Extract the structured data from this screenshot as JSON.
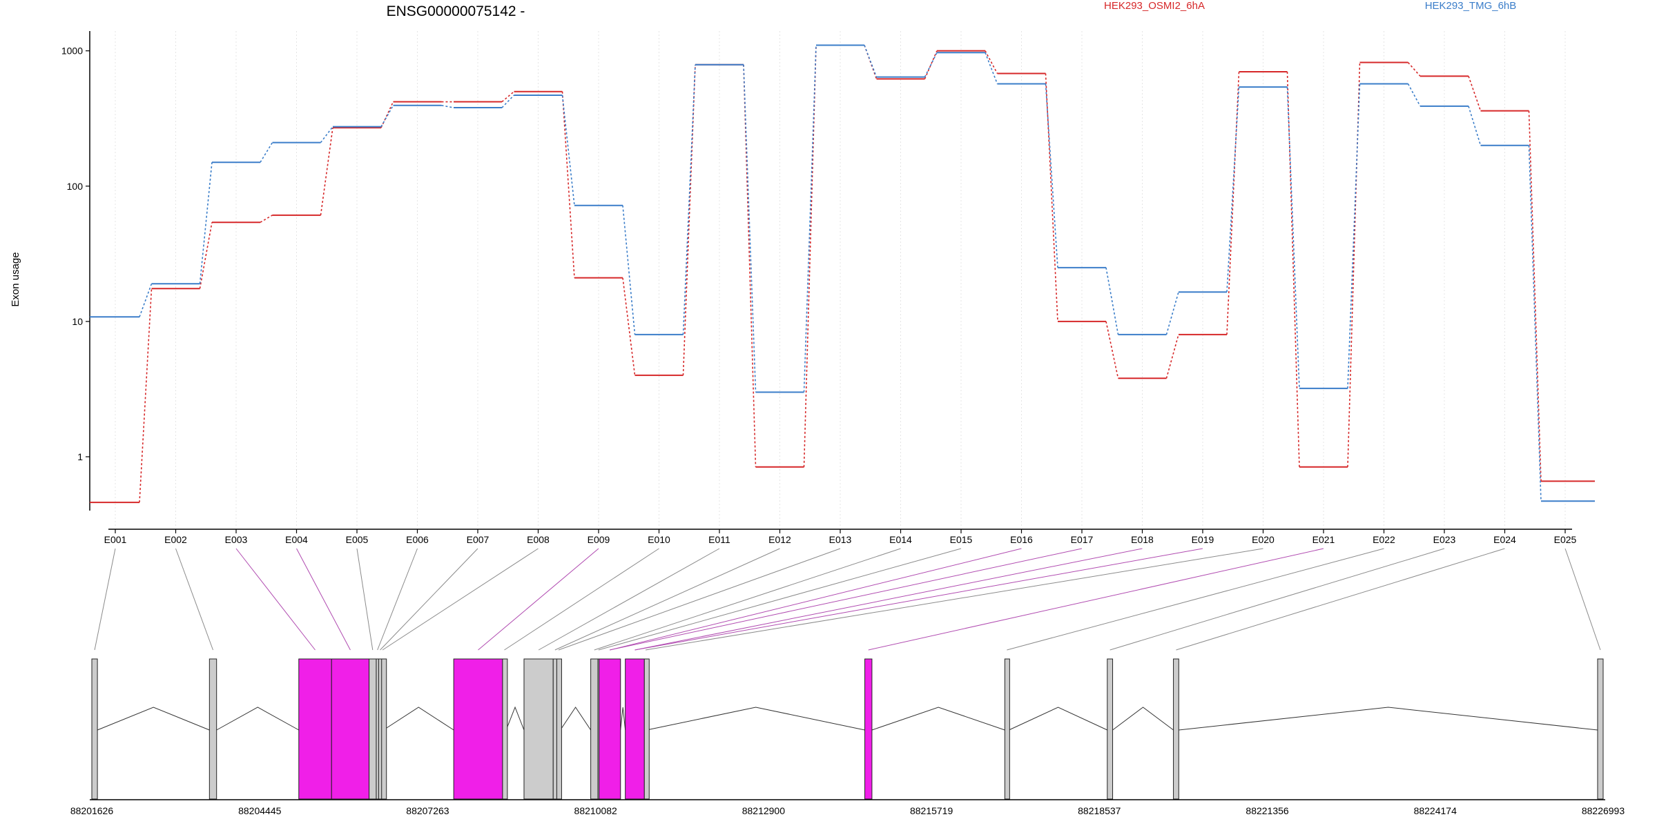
{
  "chart_data": {
    "type": "line",
    "title": "ENSG00000075142 -",
    "xlabel": "",
    "ylabel": "Exon usage",
    "yscale": "log",
    "ylim": [
      0.4,
      1400
    ],
    "yticks": [
      1,
      10,
      100,
      1000
    ],
    "ytick_labels": [
      "1",
      "10",
      "100",
      "1000"
    ],
    "grid": "vertical dotted at each exon",
    "legend": "top, horizontal",
    "categories": [
      "E001",
      "E002",
      "E003",
      "E004",
      "E005",
      "E006",
      "E007",
      "E008",
      "E009",
      "E010",
      "E011",
      "E012",
      "E013",
      "E014",
      "E015",
      "E016",
      "E017",
      "E018",
      "E019",
      "E020",
      "E021",
      "E022",
      "E023",
      "E024",
      "E025"
    ],
    "series": [
      {
        "name": "HEK293_OSMI2_6hA",
        "color": "#d62728",
        "values": [
          0.46,
          17.5,
          54,
          61,
          270,
          420,
          420,
          500,
          21,
          4,
          790,
          0.84,
          1100,
          620,
          1000,
          680,
          10,
          3.8,
          8,
          700,
          0.84,
          820,
          650,
          360,
          0.66
        ]
      },
      {
        "name": "HEK293_TMG_6hB",
        "color": "#3a7dc9",
        "values": [
          10.8,
          19,
          150,
          210,
          275,
          395,
          380,
          470,
          72,
          8,
          790,
          3,
          1100,
          640,
          970,
          570,
          25,
          8,
          16.5,
          540,
          3.2,
          570,
          390,
          200,
          0.47
        ]
      }
    ],
    "gene_model": {
      "coordinate_labels": [
        "88201626",
        "88204445",
        "88207263",
        "88210082",
        "88212900",
        "88215719",
        "88218537",
        "88221356",
        "88224174",
        "88226993"
      ],
      "coordinate_values": [
        88201626,
        88204445,
        88207263,
        88210082,
        88212900,
        88215719,
        88218537,
        88221356,
        88224174,
        88226993
      ],
      "highlight_color": "#f01fe8",
      "plain_color": "#cccccc",
      "exons": [
        {
          "id": "E001",
          "start": 88201626,
          "end": 88201720,
          "highlight": false
        },
        {
          "id": "E002",
          "start": 88203600,
          "end": 88203720,
          "highlight": false
        },
        {
          "id": "E003",
          "start": 88205100,
          "end": 88205650,
          "highlight": true
        },
        {
          "id": "E004",
          "start": 88205650,
          "end": 88206280,
          "highlight": true
        },
        {
          "id": "E005",
          "start": 88206280,
          "end": 88206400,
          "highlight": false
        },
        {
          "id": "E006",
          "start": 88206400,
          "end": 88206440,
          "highlight": false
        },
        {
          "id": "E007",
          "start": 88206440,
          "end": 88206490,
          "highlight": false
        },
        {
          "id": "E008",
          "start": 88206490,
          "end": 88206520,
          "highlight": false
        },
        {
          "id": "E009",
          "start": 88207700,
          "end": 88208520,
          "highlight": true
        },
        {
          "id": "E010",
          "start": 88208520,
          "end": 88208580,
          "highlight": false
        },
        {
          "id": "E011",
          "start": 88208880,
          "end": 88209370,
          "highlight": false
        },
        {
          "id": "E012",
          "start": 88209370,
          "end": 88209430,
          "highlight": false
        },
        {
          "id": "E013",
          "start": 88209430,
          "end": 88209490,
          "highlight": false
        },
        {
          "id": "E014",
          "start": 88210000,
          "end": 88210120,
          "highlight": false
        },
        {
          "id": "E015",
          "start": 88210120,
          "end": 88210140,
          "highlight": false
        },
        {
          "id": "E016",
          "start": 88210140,
          "end": 88210500,
          "highlight": true
        },
        {
          "id": "E017",
          "start": 88210580,
          "end": 88210900,
          "highlight": true
        },
        {
          "id": "E018",
          "start": 88210900,
          "end": 88210940,
          "highlight": false
        },
        {
          "id": "E019",
          "start": 88214600,
          "end": 88214720,
          "highlight": true
        },
        {
          "id": "E020",
          "start": 88216950,
          "end": 88217020,
          "highlight": false
        },
        {
          "id": "E021",
          "start": 88218670,
          "end": 88218760,
          "highlight": false
        },
        {
          "id": "E022",
          "start": 88219780,
          "end": 88219870,
          "highlight": false
        },
        {
          "id": "E023",
          "start": 88226900,
          "end": 88226993,
          "highlight": false
        }
      ],
      "links": [
        {
          "label": "E001",
          "exon": 0,
          "color": "#8a8a8a"
        },
        {
          "label": "E002",
          "exon": 1,
          "color": "#8a8a8a"
        },
        {
          "label": "E003",
          "exon": 2,
          "color": "#b04ab0"
        },
        {
          "label": "E004",
          "exon": 3,
          "color": "#b04ab0"
        },
        {
          "label": "E005",
          "exon": 4,
          "color": "#8a8a8a"
        },
        {
          "label": "E006",
          "exon": 5,
          "color": "#8a8a8a"
        },
        {
          "label": "E007",
          "exon": 6,
          "color": "#8a8a8a"
        },
        {
          "label": "E008",
          "exon": 7,
          "color": "#8a8a8a"
        },
        {
          "label": "E009",
          "exon": 8,
          "color": "#b04ab0"
        },
        {
          "label": "E010",
          "exon": 9,
          "color": "#8a8a8a"
        },
        {
          "label": "E011",
          "exon": 10,
          "color": "#8a8a8a"
        },
        {
          "label": "E012",
          "exon": 11,
          "color": "#8a8a8a"
        },
        {
          "label": "E013",
          "exon": 12,
          "color": "#8a8a8a"
        },
        {
          "label": "E014",
          "exon": 13,
          "color": "#8a8a8a"
        },
        {
          "label": "E015",
          "exon": 14,
          "color": "#8a8a8a"
        },
        {
          "label": "E016",
          "exon": 15,
          "color": "#b04ab0"
        },
        {
          "label": "E017",
          "exon": 15,
          "color": "#b04ab0"
        },
        {
          "label": "E018",
          "exon": 16,
          "color": "#b04ab0"
        },
        {
          "label": "E019",
          "exon": 16,
          "color": "#b04ab0"
        },
        {
          "label": "E020",
          "exon": 17,
          "color": "#8a8a8a"
        },
        {
          "label": "E021",
          "exon": 18,
          "color": "#b04ab0"
        },
        {
          "label": "E022",
          "exon": 19,
          "color": "#8a8a8a"
        },
        {
          "label": "E023",
          "exon": 20,
          "color": "#8a8a8a"
        },
        {
          "label": "E024",
          "exon": 21,
          "color": "#8a8a8a"
        },
        {
          "label": "E025",
          "exon": 22,
          "color": "#8a8a8a"
        }
      ]
    }
  }
}
